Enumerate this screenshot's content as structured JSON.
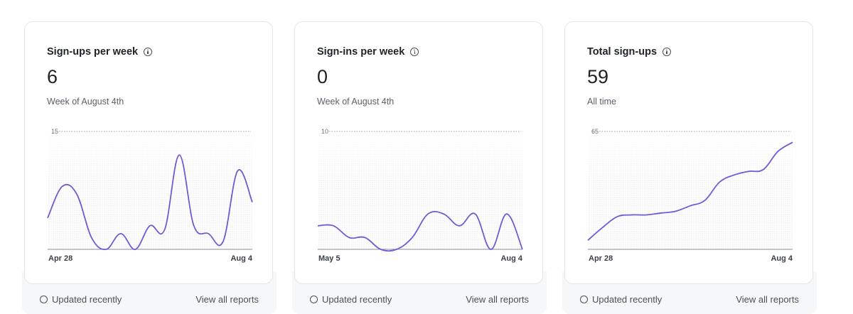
{
  "cards": [
    {
      "title": "Sign-ups per week",
      "value": "6",
      "subtitle": "Week of August 4th",
      "footer_left": "Updated recently",
      "footer_right": "View all reports",
      "chart_data": {
        "type": "line",
        "ymax_label": "15",
        "ylim": [
          0,
          15
        ],
        "x_start_label": "Apr 28",
        "x_end_label": "Aug 4",
        "values": [
          4,
          8,
          7,
          1.5,
          0,
          2,
          0,
          3,
          2.5,
          12,
          3,
          2,
          1,
          10,
          6
        ],
        "color": "#6e5bd6"
      }
    },
    {
      "title": "Sign-ins per week",
      "value": "0",
      "subtitle": "Week of August 4th",
      "footer_left": "Updated recently",
      "footer_right": "View all reports",
      "chart_data": {
        "type": "line",
        "ymax_label": "10",
        "ylim": [
          0,
          10
        ],
        "x_start_label": "May 5",
        "x_end_label": "Aug 4",
        "values": [
          2,
          2,
          1,
          1,
          0,
          0,
          1,
          3,
          3,
          2,
          3,
          0,
          3,
          0
        ],
        "color": "#6e5bd6"
      }
    },
    {
      "title": "Total sign-ups",
      "value": "59",
      "subtitle": "All time",
      "footer_left": "Updated recently",
      "footer_right": "View all reports",
      "chart_data": {
        "type": "line",
        "ymax_label": "65",
        "ylim": [
          0,
          65
        ],
        "x_start_label": "Apr 28",
        "x_end_label": "Aug 4",
        "values": [
          5,
          12,
          18,
          19,
          19,
          20,
          21,
          24,
          27,
          37,
          41,
          43,
          44,
          54,
          59
        ],
        "color": "#6e5bd6"
      }
    }
  ]
}
